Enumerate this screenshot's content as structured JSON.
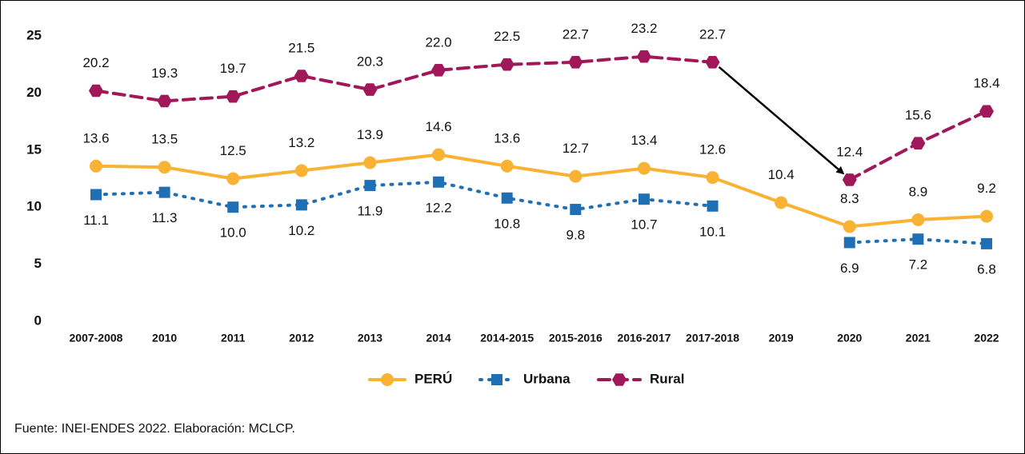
{
  "chart_data": {
    "type": "line",
    "categories": [
      "2007-2008",
      "2010",
      "2011",
      "2012",
      "2013",
      "2014",
      "2014-2015",
      "2015-2016",
      "2016-2017",
      "2017-2018",
      "2019",
      "2020",
      "2021",
      "2022"
    ],
    "series": [
      {
        "name": "PERÚ",
        "color": "#f9b233",
        "values": [
          13.6,
          13.5,
          12.5,
          13.2,
          13.9,
          14.6,
          13.6,
          12.7,
          13.4,
          12.6,
          10.4,
          8.3,
          8.9,
          9.2
        ]
      },
      {
        "name": "Urbana",
        "color": "#1f6fb5",
        "values": [
          11.1,
          11.3,
          10.0,
          10.2,
          11.9,
          12.2,
          10.8,
          9.8,
          10.7,
          10.1,
          null,
          6.9,
          7.2,
          6.8
        ]
      },
      {
        "name": "Rural",
        "color": "#a0185a",
        "values": [
          20.2,
          19.3,
          19.7,
          21.5,
          20.3,
          22.0,
          22.5,
          22.7,
          23.2,
          22.7,
          null,
          12.4,
          15.6,
          18.4
        ]
      }
    ],
    "value_labels": [
      [
        "13.6",
        "13.5",
        "12.5",
        "13.2",
        "13.9",
        "14.6",
        "13.6",
        "12.7",
        "13.4",
        "12.6",
        "10.4",
        "8.3",
        "8.9",
        "9.2"
      ],
      [
        "11.1",
        "11.3",
        "10.0",
        "10.2",
        "11.9",
        "12.2",
        "10.8",
        "9.8",
        "10.7",
        "10.1",
        null,
        "6.9",
        "7.2",
        "6.8"
      ],
      [
        "20.2",
        "19.3",
        "19.7",
        "21.5",
        "20.3",
        "22.0",
        "22.5",
        "22.7",
        "23.2",
        "22.7",
        null,
        "12.4",
        "15.6",
        "18.4"
      ]
    ],
    "ylim": [
      0,
      25
    ],
    "yticks": [
      0,
      5,
      10,
      15,
      20,
      25
    ],
    "grid": false,
    "legend": "bottom",
    "source": "Fuente: INEI-ENDES 2022. Elaboración: MCLCP."
  }
}
